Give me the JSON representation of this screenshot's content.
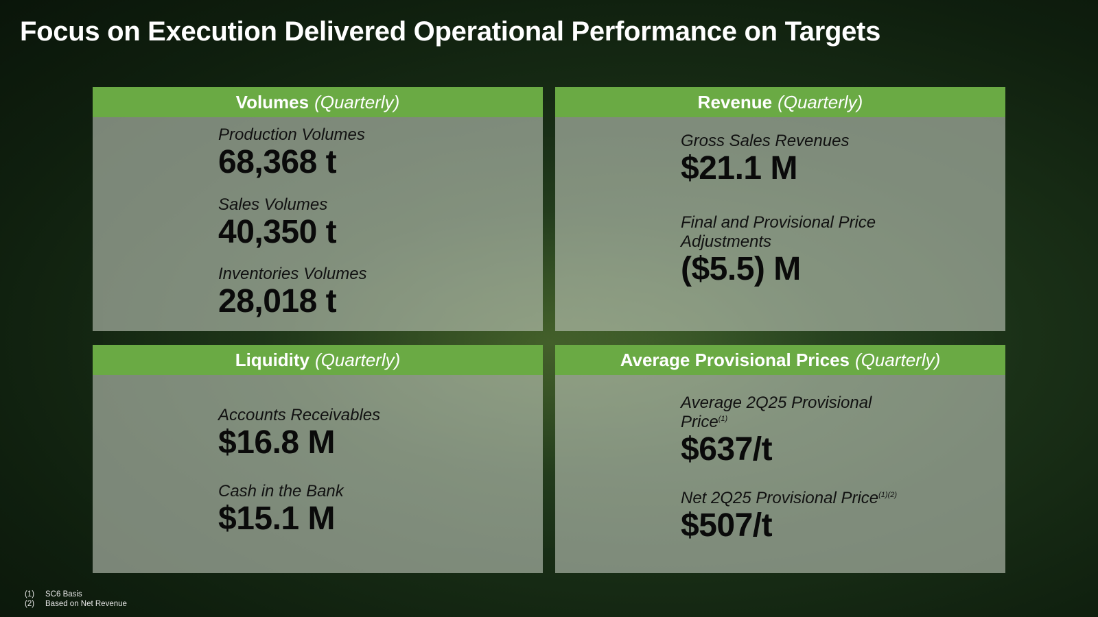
{
  "slide": {
    "title": "Focus on Execution Delivered Operational Performance on Targets"
  },
  "panels": {
    "volumes": {
      "title": "Volumes",
      "period": "(Quarterly)",
      "metrics": [
        {
          "label": "Production Volumes",
          "value": "68,368 t"
        },
        {
          "label": "Sales Volumes",
          "value": "40,350 t"
        },
        {
          "label": "Inventories Volumes",
          "value": "28,018 t"
        }
      ]
    },
    "revenue": {
      "title": "Revenue",
      "period": "(Quarterly)",
      "metrics": [
        {
          "label": "Gross Sales Revenues",
          "value": "$21.1 M"
        },
        {
          "label_line1": "Final and Provisional Price",
          "label_line2": "Adjustments",
          "value": "($5.5) M"
        }
      ]
    },
    "liquidity": {
      "title": "Liquidity",
      "period": "(Quarterly)",
      "metrics": [
        {
          "label": "Accounts Receivables",
          "value": "$16.8 M"
        },
        {
          "label": "Cash in the Bank",
          "value": "$15.1 M"
        }
      ]
    },
    "prices": {
      "title": "Average Provisional Prices",
      "period": "(Quarterly)",
      "metrics": [
        {
          "label_line1": "Average 2Q25 Provisional",
          "label_line2": "Price",
          "note": "(1)",
          "value": "$637/t"
        },
        {
          "label": "Net 2Q25 Provisional Price",
          "note": "(1)(2)",
          "value": "$507/t"
        }
      ]
    }
  },
  "footnotes": [
    {
      "num": "(1)",
      "text": "SC6 Basis"
    },
    {
      "num": "(2)",
      "text": "Based on Net Revenue"
    }
  ]
}
